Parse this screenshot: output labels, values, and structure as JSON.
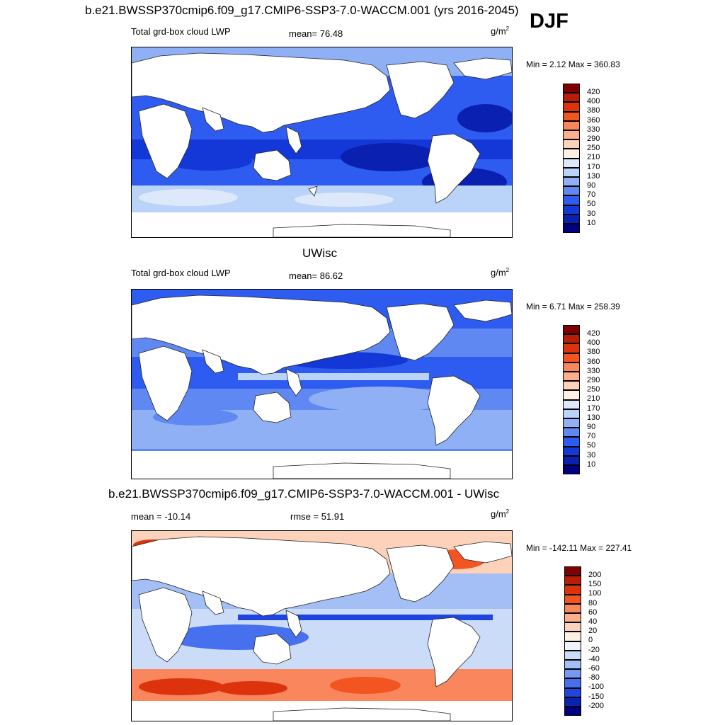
{
  "header": {
    "main_title": "b.e21.BWSSP370cmip6.f09_g17.CMIP6-SSP3-7.0-WACCM.001 (yrs 2016-2045)",
    "season": "DJF"
  },
  "panels": [
    {
      "id": "case",
      "subtitle": "",
      "left_label": "Total grd-box cloud LWP",
      "center_label": "mean=  76.48",
      "units": "g/m",
      "units_exp": "2",
      "minmax": "Min =   2.12 Max = 360.83",
      "legend": [
        "420",
        "400",
        "380",
        "360",
        "330",
        "290",
        "250",
        "210",
        "170",
        "130",
        "90",
        "70",
        "50",
        "30",
        "10"
      ],
      "legend_colors": [
        "#7f0000",
        "#b81d06",
        "#dc330c",
        "#f25522",
        "#f9865c",
        "#fdaf8b",
        "#fdd2ba",
        "#fdf0e4",
        "#dde9fb",
        "#bad3f9",
        "#8fb0f5",
        "#5f88f2",
        "#2f5cf0",
        "#1438d8",
        "#0a20b0",
        "#000080"
      ]
    },
    {
      "id": "obs",
      "subtitle": "UWisc",
      "left_label": "Total grd-box cloud LWP",
      "center_label": "mean=  86.62",
      "units": "g/m",
      "units_exp": "2",
      "minmax": "Min =   6.71 Max = 258.39",
      "legend": [
        "420",
        "400",
        "380",
        "360",
        "330",
        "290",
        "250",
        "210",
        "170",
        "130",
        "90",
        "70",
        "50",
        "30",
        "10"
      ],
      "legend_colors": [
        "#7f0000",
        "#b81d06",
        "#dc330c",
        "#f25522",
        "#f9865c",
        "#fdaf8b",
        "#fdd2ba",
        "#fdf0e4",
        "#dde9fb",
        "#bad3f9",
        "#8fb0f5",
        "#5f88f2",
        "#2f5cf0",
        "#1438d8",
        "#0a20b0",
        "#000080"
      ]
    },
    {
      "id": "diff",
      "subtitle": "b.e21.BWSSP370cmip6.f09_g17.CMIP6-SSP3-7.0-WACCM.001 - UWisc",
      "left_label": "mean = -10.14",
      "center_label": "rmse =  51.91",
      "units": "g/m",
      "units_exp": "2",
      "minmax": "Min = -142.11 Max = 227.41",
      "legend": [
        "200",
        "150",
        "100",
        "80",
        "60",
        "40",
        "20",
        "0",
        "-20",
        "-40",
        "-60",
        "-80",
        "-100",
        "-150",
        "-200"
      ],
      "legend_colors": [
        "#7f0000",
        "#b81d06",
        "#dc330c",
        "#f25522",
        "#f9865c",
        "#fdaf8b",
        "#fdd2ba",
        "#fdf0e4",
        "#eef3fc",
        "#cbdcf8",
        "#a3bff5",
        "#7598f0",
        "#4670ee",
        "#1f45e0",
        "#0a22b0",
        "#000080"
      ]
    }
  ]
}
